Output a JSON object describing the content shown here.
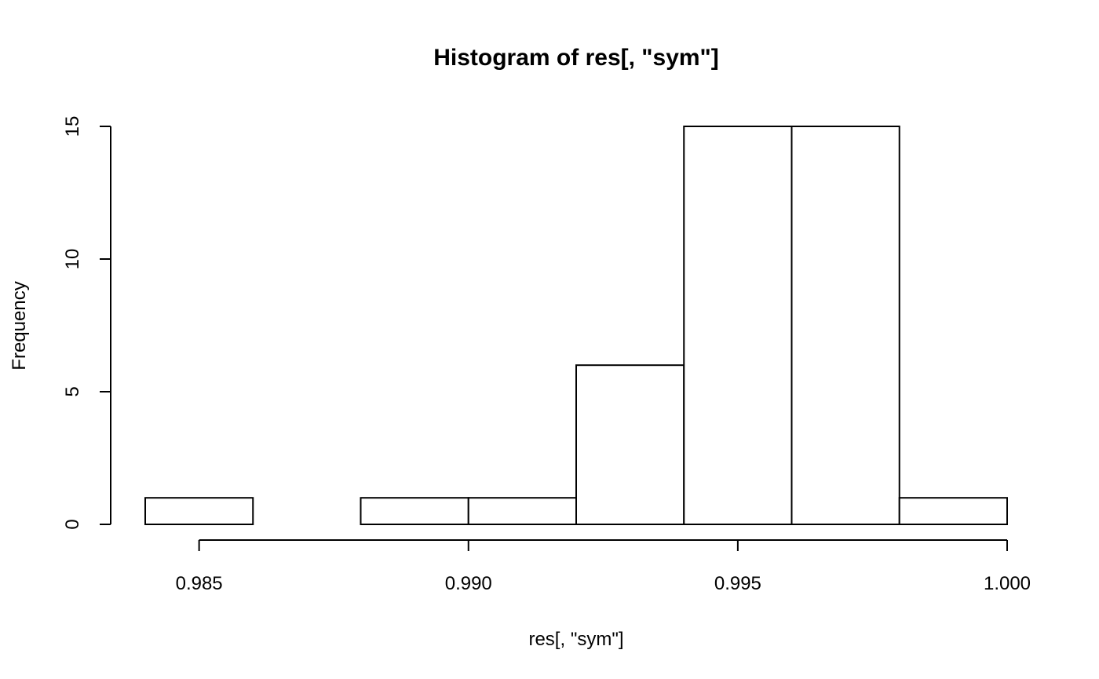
{
  "chart_data": {
    "type": "bar",
    "title": "Histogram of res[, \"sym\"]",
    "xlabel": "res[, \"sym\"]",
    "ylabel": "Frequency",
    "bins": [
      {
        "start": 0.984,
        "end": 0.986,
        "count": 1
      },
      {
        "start": 0.986,
        "end": 0.988,
        "count": 0
      },
      {
        "start": 0.988,
        "end": 0.99,
        "count": 1
      },
      {
        "start": 0.99,
        "end": 0.992,
        "count": 1
      },
      {
        "start": 0.992,
        "end": 0.994,
        "count": 6
      },
      {
        "start": 0.994,
        "end": 0.996,
        "count": 15
      },
      {
        "start": 0.996,
        "end": 0.998,
        "count": 15
      },
      {
        "start": 0.998,
        "end": 1.0,
        "count": 1
      }
    ],
    "xticks": [
      {
        "value": 0.985,
        "label": "0.985"
      },
      {
        "value": 0.99,
        "label": "0.990"
      },
      {
        "value": 0.995,
        "label": "0.995"
      },
      {
        "value": 1.0,
        "label": "1.000"
      }
    ],
    "yticks": [
      {
        "value": 0,
        "label": "0"
      },
      {
        "value": 5,
        "label": "5"
      },
      {
        "value": 10,
        "label": "10"
      },
      {
        "value": 15,
        "label": "15"
      }
    ],
    "xlim": [
      0.984,
      1.0
    ],
    "ylim": [
      0,
      15
    ],
    "grid": false,
    "bar_fill": "#ffffff",
    "bar_stroke": "#000000"
  }
}
